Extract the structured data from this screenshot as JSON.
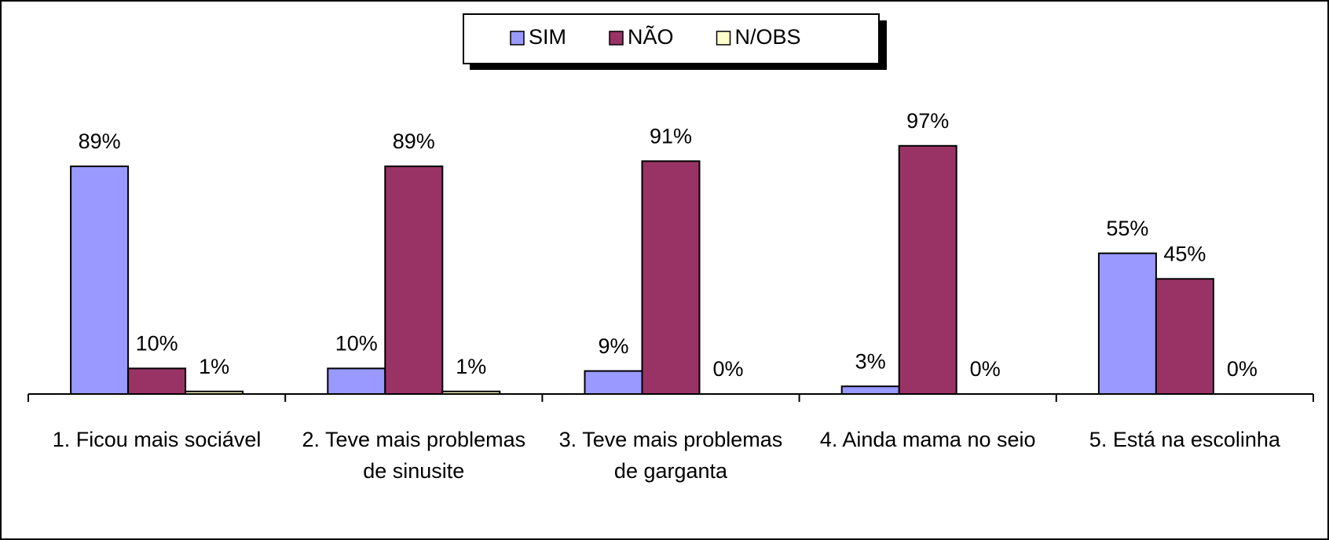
{
  "chart_data": {
    "type": "bar",
    "categories": [
      "1. Ficou mais sociável",
      "2. Teve mais problemas de sinusite",
      "3. Teve mais problemas de garganta",
      "4. Ainda mama no seio",
      "5. Está na escolinha"
    ],
    "series": [
      {
        "name": "SIM",
        "color": "#9999ff",
        "values": [
          89,
          10,
          9,
          3,
          55
        ],
        "value_labels": [
          "89%",
          "10%",
          "9%",
          "3%",
          "55%"
        ]
      },
      {
        "name": "NÃO",
        "color": "#993366",
        "values": [
          10,
          89,
          91,
          97,
          45
        ],
        "value_labels": [
          "10%",
          "89%",
          "91%",
          "97%",
          "45%"
        ]
      },
      {
        "name": "N/OBS",
        "color": "#ffffcc",
        "values": [
          1,
          1,
          0,
          0,
          0
        ],
        "value_labels": [
          "1%",
          "1%",
          "0%",
          "0%",
          "0%"
        ]
      }
    ],
    "legend": "top"
  }
}
